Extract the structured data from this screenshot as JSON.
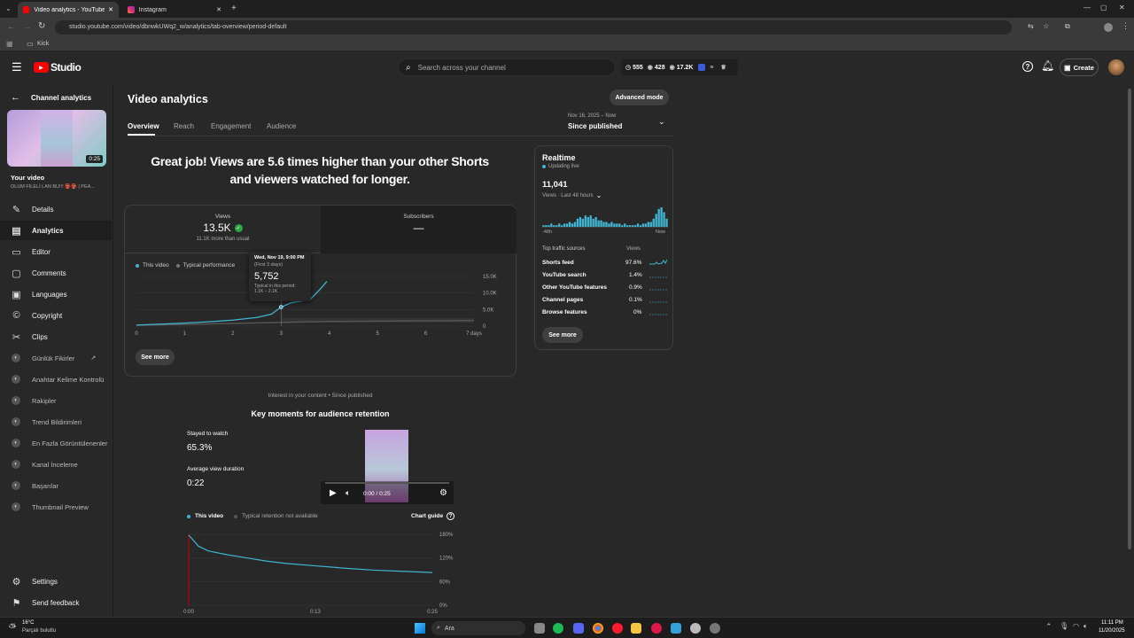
{
  "browser": {
    "tabs": [
      {
        "title": "Video analytics - YouTube Studi",
        "active": true
      },
      {
        "title": "Instagram",
        "active": false
      }
    ],
    "url": "studio.youtube.com/video/dbnwkUWq2_w/analytics/tab-overview/period-default",
    "bookmark": "Kick"
  },
  "topbar": {
    "logo": "Studio",
    "search_placeholder": "Search across your channel",
    "stat1": "555",
    "stat2": "428",
    "stat3": "17.2K",
    "create_label": "Create"
  },
  "sidebar": {
    "header": "Channel analytics",
    "thumb_duration": "0:25",
    "your_video": "Your video",
    "video_title": "OLUM FİLELİ LAN BU!!! 👺👺 | PEA...",
    "items": [
      {
        "label": "Details"
      },
      {
        "label": "Analytics"
      },
      {
        "label": "Editor"
      },
      {
        "label": "Comments"
      },
      {
        "label": "Languages"
      },
      {
        "label": "Copyright"
      },
      {
        "label": "Clips"
      }
    ],
    "sub_items": [
      {
        "label": "Günlük Fikirler"
      },
      {
        "label": "Anahtar Kelime Kontrolü"
      },
      {
        "label": "Rakipler"
      },
      {
        "label": "Trend Bildirimleri"
      },
      {
        "label": "En Fazla Görüntülenenler"
      },
      {
        "label": "Kanal İnceleme"
      },
      {
        "label": "Başarılar"
      },
      {
        "label": "Thumbnail Preview"
      }
    ],
    "settings": "Settings",
    "feedback": "Send feedback"
  },
  "main": {
    "title": "Video analytics",
    "advanced_mode": "Advanced mode",
    "tabs": [
      {
        "label": "Overview",
        "active": true
      },
      {
        "label": "Reach"
      },
      {
        "label": "Engagement"
      },
      {
        "label": "Audience"
      }
    ],
    "period_range": "Nov 16, 2025 – Now",
    "period_label": "Since published",
    "headline_line1": "Great job! Views are 5.6 times higher than your other Shorts",
    "headline_line2": "and viewers watched for longer.",
    "views_label": "Views",
    "views_value": "13.5K",
    "views_sub": "11.1K more than usual",
    "subs_label": "Subscribers",
    "subs_value": "—",
    "legend_this": "This video",
    "legend_typical": "Typical performance",
    "tooltip": {
      "date": "Wed, Nov 19, 9:00 PM",
      "range": "(First 3 days)",
      "value": "5,752",
      "typical_label": "Typical in this period:",
      "typical_value": "1.1K – 2.1K"
    },
    "see_more": "See more",
    "interest_caption": "Interest in your content • Since published",
    "key_moments_title": "Key moments for audience retention",
    "stayed_label": "Stayed to watch",
    "stayed_value": "65.3%",
    "avd_label": "Average view duration",
    "avd_value": "0:22",
    "player_time": "0:00 / 0:25",
    "ret_legend_this": "This video",
    "ret_legend_typical": "Typical retention not available",
    "chart_guide": "Chart guide"
  },
  "realtime": {
    "title": "Realtime",
    "status": "Updating live",
    "value": "11,041",
    "sub": "Views · Last 48 hours",
    "axis_left": "-48h",
    "axis_right": "Now",
    "sources_header": "Top traffic sources",
    "sources_views_header": "Views",
    "sources": [
      {
        "name": "Shorts feed",
        "pct": "97.6%"
      },
      {
        "name": "YouTube search",
        "pct": "1.4%"
      },
      {
        "name": "Other YouTube features",
        "pct": "0.9%"
      },
      {
        "name": "Channel pages",
        "pct": "0.1%"
      },
      {
        "name": "Browse features",
        "pct": "0%"
      }
    ],
    "see_more": "See more",
    "bars": [
      1,
      1,
      1,
      2,
      1,
      1,
      2,
      1,
      2,
      2,
      3,
      2,
      3,
      5,
      6,
      5,
      7,
      6,
      7,
      5,
      6,
      4,
      4,
      3,
      3,
      2,
      3,
      2,
      2,
      2,
      1,
      2,
      1,
      1,
      1,
      1,
      2,
      1,
      2,
      2,
      3,
      3,
      5,
      8,
      11,
      12,
      9,
      5
    ]
  },
  "taskbar": {
    "weather_temp": "16°C",
    "weather_desc": "Parçalı bulutlu",
    "search": "Ara",
    "time": "11:11 PM",
    "date": "11/20/2025"
  },
  "chart_data": [
    {
      "type": "line",
      "title": "",
      "x": [
        0,
        1,
        2,
        3,
        4,
        5,
        6,
        7
      ],
      "x_ticks": [
        "0",
        "1",
        "2",
        "3",
        "4",
        "5",
        "6",
        "7 days"
      ],
      "ylim": [
        0,
        15000
      ],
      "y_ticks": [
        "0",
        "5.0K",
        "10.0K",
        "15.0K"
      ],
      "series": [
        {
          "name": "This video",
          "points": [
            [
              0,
              300
            ],
            [
              0.5,
              600
            ],
            [
              1,
              900
            ],
            [
              1.5,
              1300
            ],
            [
              2,
              1800
            ],
            [
              2.5,
              2600
            ],
            [
              2.8,
              3600
            ],
            [
              3,
              5752
            ],
            [
              3.2,
              7000
            ],
            [
              3.6,
              8000
            ],
            [
              3.8,
              11000
            ],
            [
              3.95,
              13500
            ]
          ]
        },
        {
          "name": "Typical performance",
          "points": [
            [
              0,
              300
            ],
            [
              1,
              500
            ],
            [
              2,
              800
            ],
            [
              3,
              1100
            ],
            [
              4,
              1400
            ],
            [
              5,
              1500
            ],
            [
              6,
              1600
            ],
            [
              7,
              1700
            ]
          ]
        }
      ]
    },
    {
      "type": "line",
      "title": "Key moments for audience retention",
      "x_ticks": [
        "0:00",
        "0:13",
        "0:25"
      ],
      "ylim": [
        0,
        180
      ],
      "y_ticks": [
        "0%",
        "60%",
        "120%",
        "180%"
      ],
      "series": [
        {
          "name": "This video",
          "points": [
            [
              0,
              178
            ],
            [
              1,
              150
            ],
            [
              2,
              138
            ],
            [
              4,
              128
            ],
            [
              6,
              120
            ],
            [
              8,
              112
            ],
            [
              10,
              106
            ],
            [
              13,
              100
            ],
            [
              16,
              94
            ],
            [
              19,
              89
            ],
            [
              22,
              86
            ],
            [
              25,
              83
            ]
          ]
        }
      ]
    }
  ]
}
